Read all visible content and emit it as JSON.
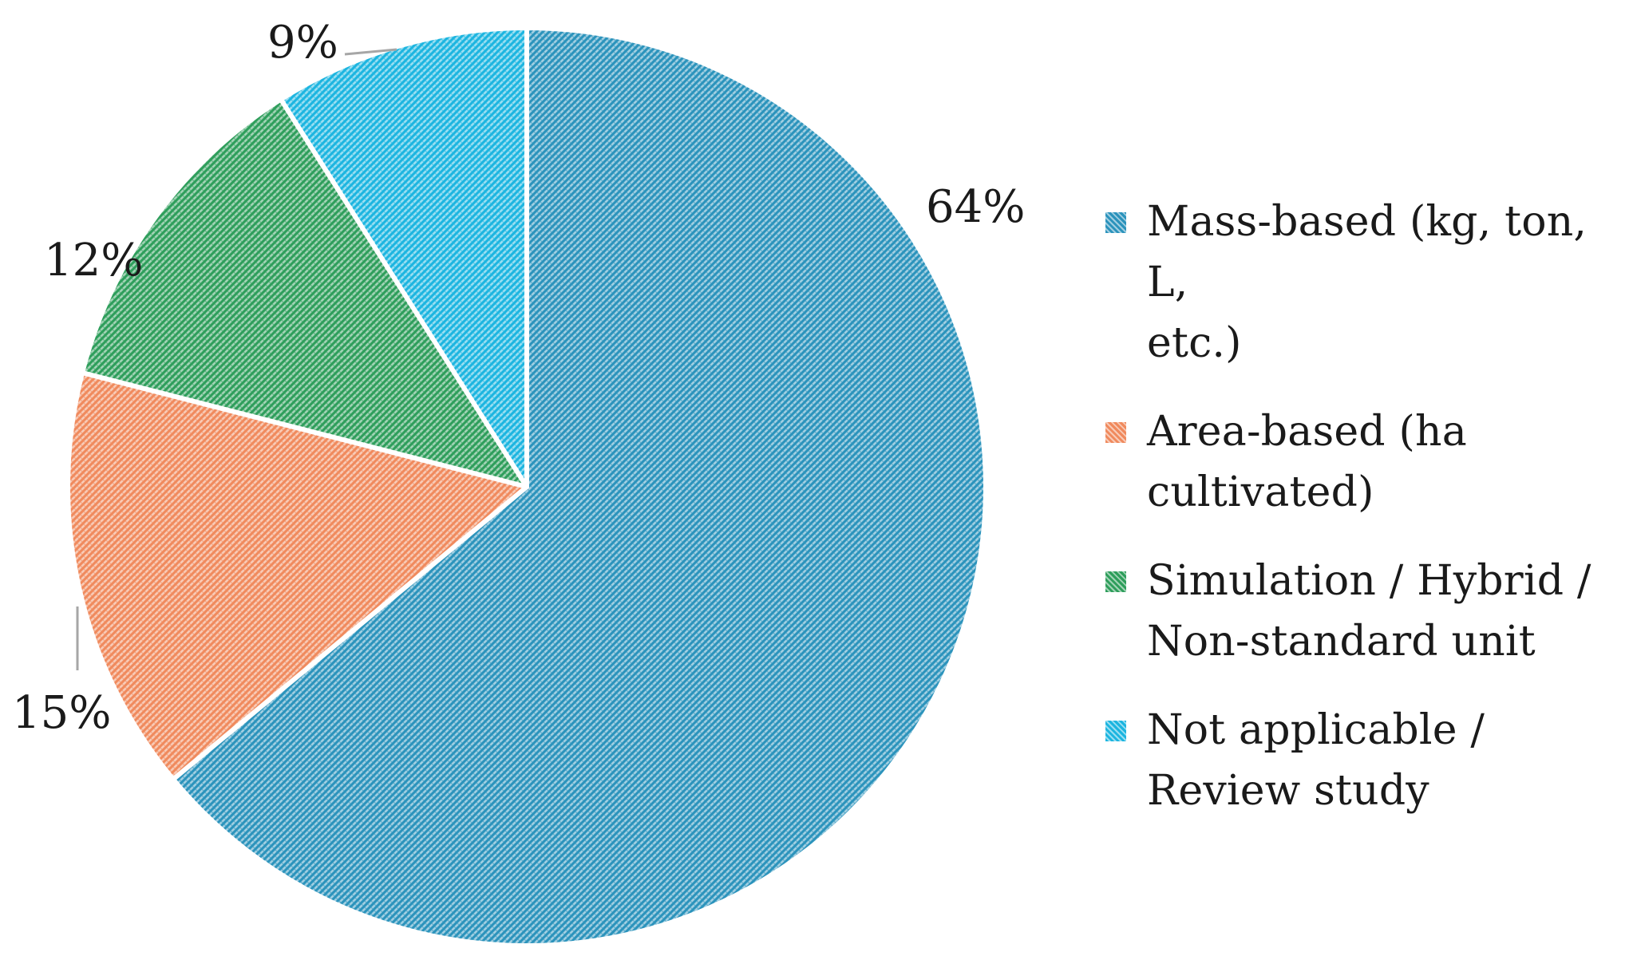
{
  "chart_data": {
    "type": "pie",
    "slices": [
      {
        "name": "Mass-based (kg, ton, L, etc.)",
        "value": 64,
        "label": "64%",
        "color": "#2B93BC"
      },
      {
        "name": "Area-based (ha cultivated)",
        "value": 15,
        "label": "15%",
        "color": "#F08A5D"
      },
      {
        "name": "Simulation / Hybrid / Non-standard unit",
        "value": 12,
        "label": "12%",
        "color": "#2E9E5B"
      },
      {
        "name": "Not applicable / Review study",
        "value": 9,
        "label": "9%",
        "color": "#1CB5E0"
      }
    ],
    "fill_pattern": "diagonal-hatch",
    "legend_position": "right",
    "start": "top",
    "direction": "clockwise"
  },
  "legend": {
    "items": [
      {
        "line1": "Mass-based (kg, ton, L,",
        "line2": "etc.)"
      },
      {
        "line1": "Area-based (ha",
        "line2": "cultivated)"
      },
      {
        "line1": "Simulation / Hybrid /",
        "line2": "Non-standard unit"
      },
      {
        "line1": "Not applicable /",
        "line2": "Review study"
      }
    ]
  }
}
